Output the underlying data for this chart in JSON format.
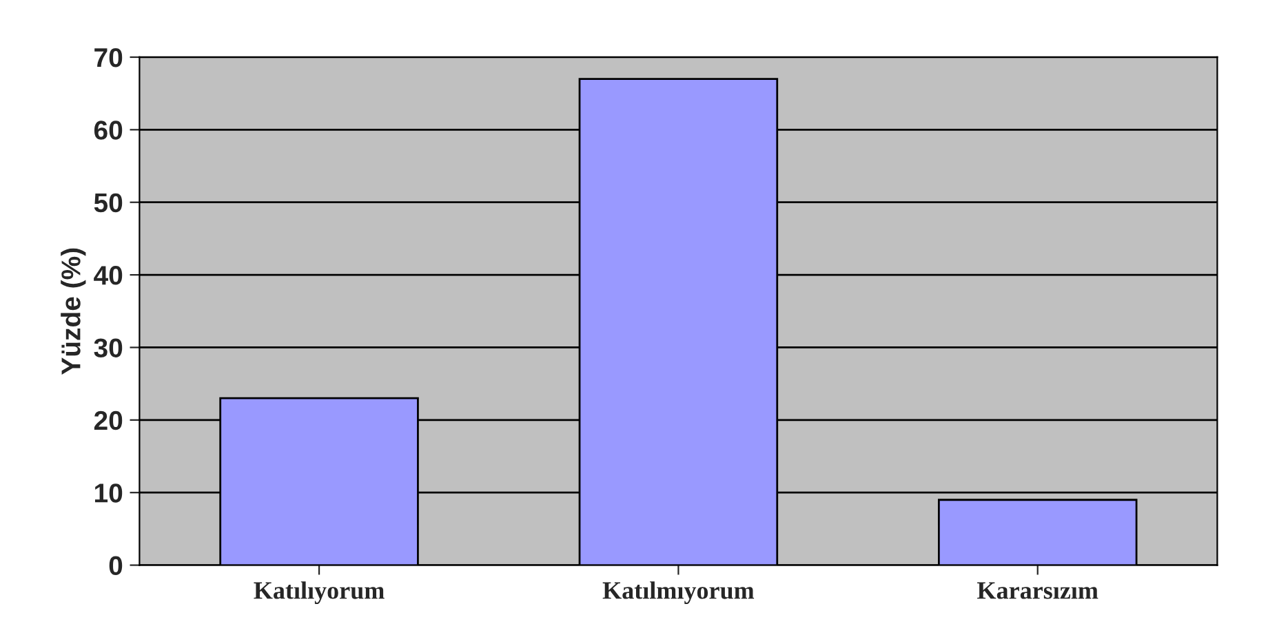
{
  "chart_data": {
    "type": "bar",
    "ylabel": "Yüzde (%)",
    "categories": [
      "Katılıyorum",
      "Katılmıyorum",
      "Kararsızım"
    ],
    "values": [
      23,
      67,
      9
    ],
    "color": "#9999ff",
    "ylim": [
      0,
      70
    ],
    "yticks": [
      0,
      10,
      20,
      30,
      40,
      50,
      60,
      70
    ],
    "grid": "y"
  }
}
